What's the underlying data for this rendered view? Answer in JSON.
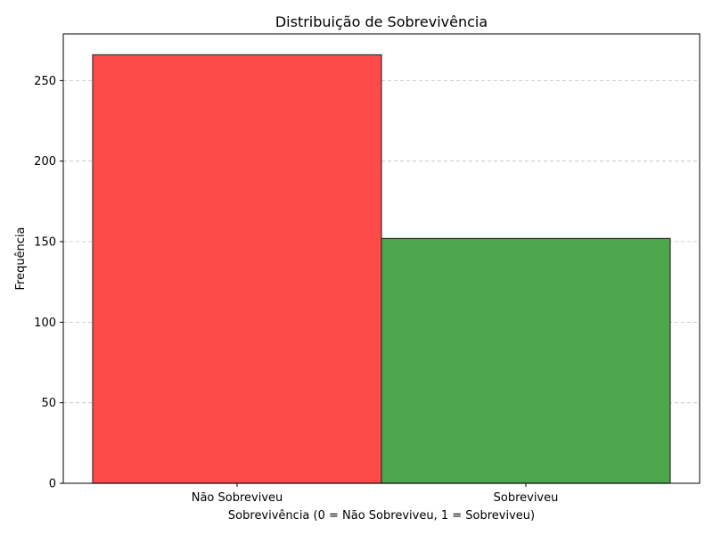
{
  "chart_data": {
    "type": "bar",
    "title": "Distribuição de Sobrevivência",
    "xlabel": "Sobrevivência (0 = Não Sobreviveu, 1 = Sobreviveu)",
    "ylabel": "Frequência",
    "categories": [
      "Não Sobreviveu",
      "Sobreviveu"
    ],
    "values": [
      266,
      152
    ],
    "colors": [
      "#ff4a4a",
      "#4ca64c"
    ],
    "edge_color": "#333333",
    "ylim": [
      0,
      279
    ],
    "yticks": [
      0,
      50,
      100,
      150,
      200,
      250
    ],
    "grid": {
      "axis": "y",
      "style": "dashed",
      "on": true
    },
    "legend": "none"
  }
}
